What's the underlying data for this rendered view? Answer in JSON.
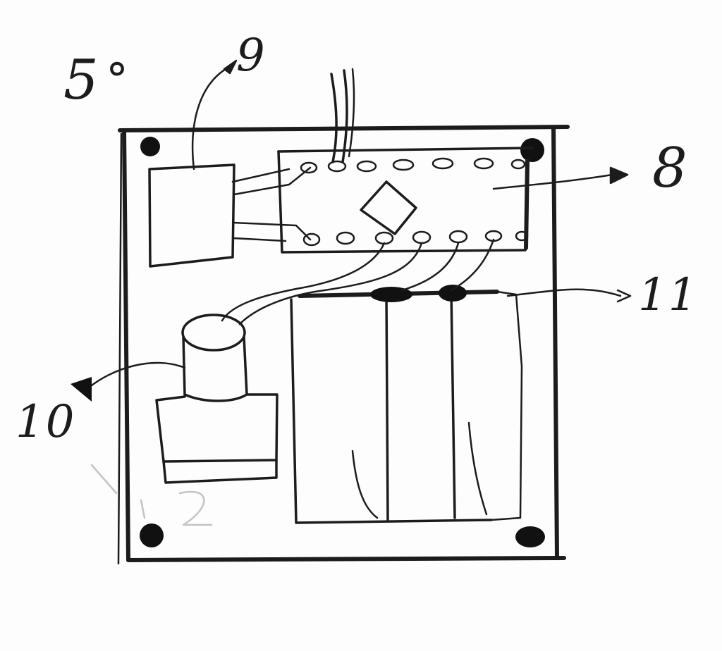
{
  "diagram": {
    "callouts": [
      {
        "key": "figure",
        "text": "5"
      },
      {
        "key": "controller",
        "text": "9"
      },
      {
        "key": "board",
        "text": "8"
      },
      {
        "key": "cells",
        "text": "11"
      },
      {
        "key": "motor",
        "text": "10"
      }
    ]
  }
}
